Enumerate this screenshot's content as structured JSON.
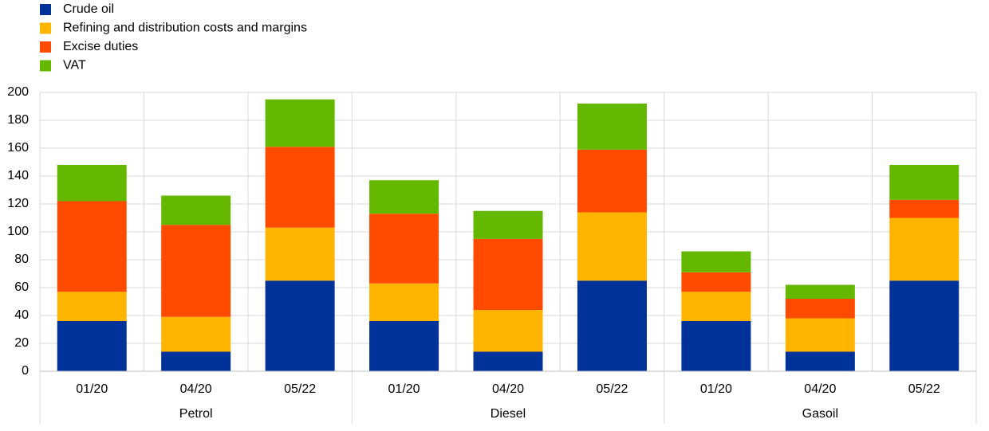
{
  "chart_data": {
    "type": "stacked_bar",
    "categories": [
      "01/20",
      "04/20",
      "05/22",
      "01/20",
      "04/20",
      "05/22",
      "01/20",
      "04/20",
      "05/22"
    ],
    "groups": [
      "Petrol",
      "Diesel",
      "Gasoil"
    ],
    "series": [
      {
        "name": "Crude oil",
        "color": "#003299",
        "values": [
          36,
          14,
          65,
          36,
          14,
          65,
          36,
          14,
          65
        ]
      },
      {
        "name": "Refining and distribution costs and margins",
        "color": "#ffb400",
        "values": [
          21,
          25,
          38,
          27,
          30,
          49,
          21,
          24,
          45
        ]
      },
      {
        "name": "Excise duties",
        "color": "#ff4b00",
        "values": [
          65,
          66,
          58,
          50,
          51,
          45,
          14,
          14,
          13
        ]
      },
      {
        "name": "VAT",
        "color": "#65b800",
        "values": [
          26,
          21,
          34,
          24,
          20,
          33,
          15,
          10,
          25
        ]
      }
    ],
    "ylim": [
      0,
      200
    ],
    "yticks": [
      0,
      20,
      40,
      60,
      80,
      100,
      120,
      140,
      160,
      180,
      200
    ],
    "grid": true
  }
}
